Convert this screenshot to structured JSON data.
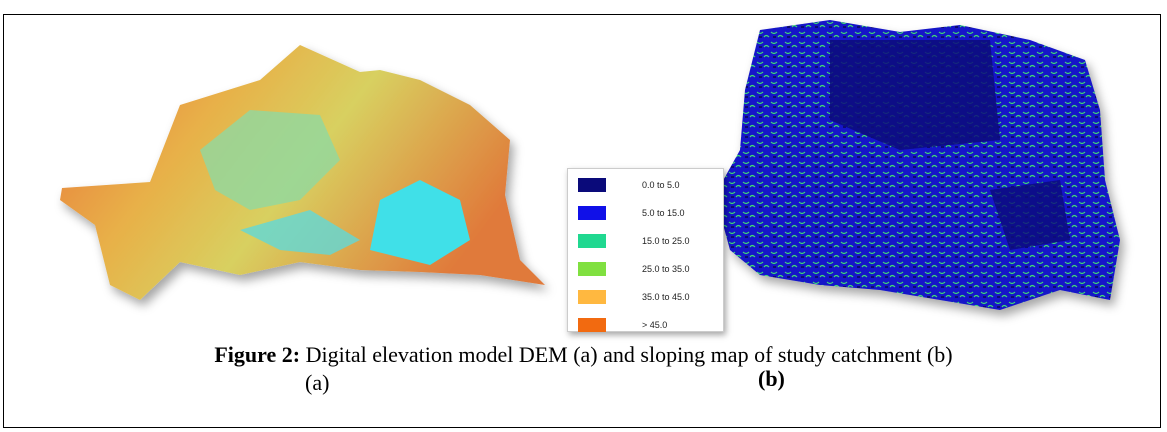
{
  "figure": {
    "legend": [
      {
        "label": "0.0 to 5.0",
        "color": "#0a0a7a"
      },
      {
        "label": "5.0 to 15.0",
        "color": "#1010e8"
      },
      {
        "label": "15.0 to 25.0",
        "color": "#20d890"
      },
      {
        "label": "25.0 to 35.0",
        "color": "#80e040"
      },
      {
        "label": "35.0 to 45.0",
        "color": "#ffb840"
      },
      {
        "label": "> 45.0",
        "color": "#f26a10"
      }
    ],
    "caption": {
      "label": "Figure 2:",
      "text": " Digital elevation model DEM (a) and sloping map of study catchment (b)"
    },
    "panel_labels": [
      "(a)",
      "(b)"
    ]
  }
}
